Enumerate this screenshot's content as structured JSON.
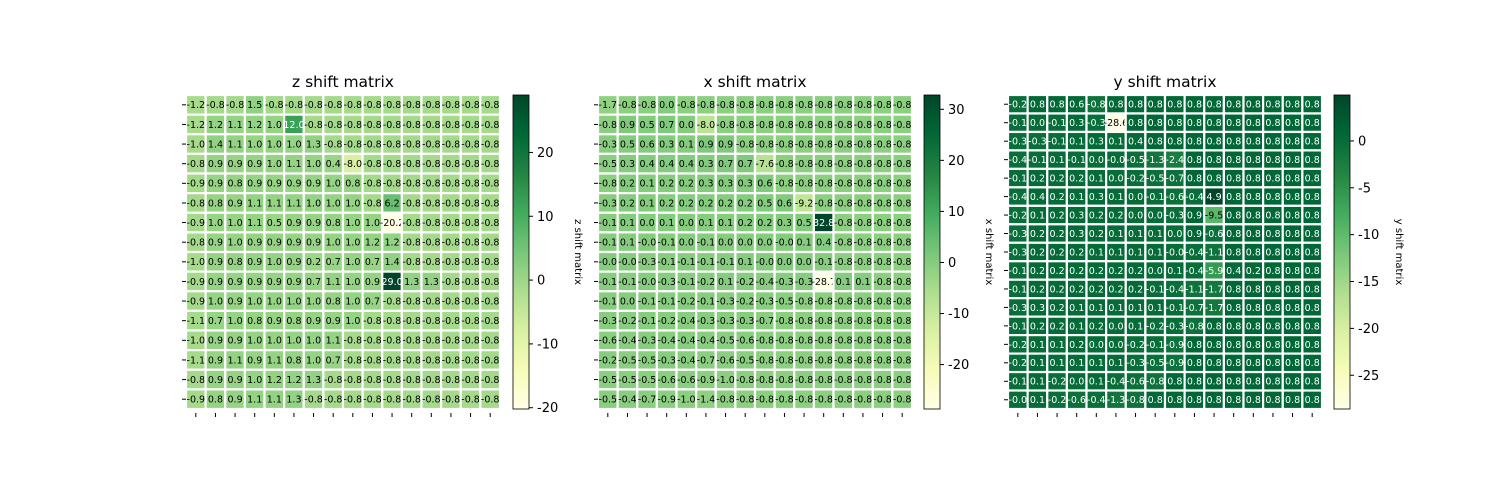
{
  "chart_data": [
    {
      "type": "heatmap",
      "title": "z shift matrix",
      "colorbar_label": "z shift matrix",
      "colorbar_ticks": [
        -20,
        -10,
        0,
        10,
        20
      ],
      "vmin": -20.2,
      "vmax": 29.0,
      "rows": [
        [
          "-1.2",
          "-0.8",
          "-0.8",
          "1.5",
          "-0.8",
          "-0.8",
          "-0.8",
          "-0.8",
          "-0.8",
          "-0.8",
          "-0.8",
          "-0.8",
          "-0.8",
          "-0.8",
          "-0.8",
          "-0.8"
        ],
        [
          "-1.2",
          "1.2",
          "1.1",
          "1.2",
          "1.0",
          "12.0",
          "-0.8",
          "-0.8",
          "-0.8",
          "-0.8",
          "-0.8",
          "-0.8",
          "-0.8",
          "-0.8",
          "-0.8",
          "-0.8"
        ],
        [
          "-1.0",
          "1.4",
          "1.1",
          "1.0",
          "1.0",
          "1.0",
          "1.3",
          "-0.8",
          "-0.8",
          "-0.8",
          "-0.8",
          "-0.8",
          "-0.8",
          "-0.8",
          "-0.8",
          "-0.8"
        ],
        [
          "-0.8",
          "0.9",
          "0.9",
          "0.9",
          "1.0",
          "1.1",
          "1.0",
          "0.4",
          "-8.0",
          "-0.8",
          "-0.8",
          "-0.8",
          "-0.8",
          "-0.8",
          "-0.8",
          "-0.8"
        ],
        [
          "-0.9",
          "0.9",
          "0.8",
          "0.9",
          "0.9",
          "0.9",
          "0.9",
          "1.0",
          "0.8",
          "-0.8",
          "-0.8",
          "-0.8",
          "-0.8",
          "-0.8",
          "-0.8",
          "-0.8"
        ],
        [
          "-0.8",
          "0.8",
          "0.9",
          "1.1",
          "1.1",
          "1.1",
          "1.0",
          "1.0",
          "1.0",
          "-0.8",
          "6.2",
          "-0.8",
          "-0.8",
          "-0.8",
          "-0.8",
          "-0.8"
        ],
        [
          "-0.9",
          "1.0",
          "1.0",
          "1.1",
          "0.5",
          "0.9",
          "0.9",
          "0.8",
          "1.0",
          "1.0",
          "-20.2",
          "-0.8",
          "-0.8",
          "-0.8",
          "-0.8",
          "-0.8"
        ],
        [
          "-0.8",
          "0.9",
          "1.0",
          "0.9",
          "0.9",
          "0.9",
          "0.9",
          "1.0",
          "1.0",
          "1.2",
          "1.2",
          "-0.8",
          "-0.8",
          "-0.8",
          "-0.8",
          "-0.8"
        ],
        [
          "-1.0",
          "0.9",
          "0.8",
          "0.9",
          "1.0",
          "0.9",
          "0.2",
          "0.7",
          "1.0",
          "0.7",
          "1.4",
          "-0.8",
          "-0.8",
          "-0.8",
          "-0.8",
          "-0.8"
        ],
        [
          "-0.9",
          "0.9",
          "0.9",
          "0.9",
          "0.9",
          "0.9",
          "0.7",
          "1.1",
          "1.0",
          "0.9",
          "29.0",
          "1.3",
          "1.3",
          "-0.8",
          "-0.8",
          "-0.8"
        ],
        [
          "-0.9",
          "1.0",
          "0.9",
          "1.0",
          "1.0",
          "1.0",
          "1.0",
          "0.8",
          "1.0",
          "0.7",
          "-0.8",
          "-0.8",
          "-0.8",
          "-0.8",
          "-0.8",
          "-0.8"
        ],
        [
          "-1.1",
          "0.7",
          "1.0",
          "0.8",
          "0.9",
          "0.8",
          "0.9",
          "0.9",
          "1.0",
          "-0.8",
          "-0.8",
          "-0.8",
          "-0.8",
          "-0.8",
          "-0.8",
          "-0.8"
        ],
        [
          "-1.0",
          "0.9",
          "0.9",
          "1.0",
          "1.0",
          "1.0",
          "1.0",
          "1.1",
          "-0.8",
          "-0.8",
          "-0.8",
          "-0.8",
          "-0.8",
          "-0.8",
          "-0.8",
          "-0.8"
        ],
        [
          "-1.1",
          "0.9",
          "1.1",
          "0.9",
          "1.1",
          "0.8",
          "1.0",
          "0.7",
          "-0.8",
          "-0.8",
          "-0.8",
          "-0.8",
          "-0.8",
          "-0.8",
          "-0.8",
          "-0.8"
        ],
        [
          "-0.8",
          "0.9",
          "0.9",
          "1.0",
          "1.2",
          "1.2",
          "1.3",
          "-0.8",
          "-0.8",
          "-0.8",
          "-0.8",
          "-0.8",
          "-0.8",
          "-0.8",
          "-0.8",
          "-0.8"
        ],
        [
          "-0.9",
          "0.8",
          "0.9",
          "1.1",
          "1.1",
          "1.3",
          "-0.8",
          "-0.8",
          "-0.8",
          "-0.8",
          "-0.8",
          "-0.8",
          "-0.8",
          "-0.8",
          "-0.8",
          "-0.8"
        ]
      ]
    },
    {
      "type": "heatmap",
      "title": "x shift matrix",
      "colorbar_label": "x shift matrix",
      "colorbar_ticks": [
        -20,
        -10,
        0,
        10,
        20,
        30
      ],
      "vmin": -28.7,
      "vmax": 32.8,
      "rows": [
        [
          "-1.7",
          "-0.8",
          "-0.8",
          "0.0",
          "-0.8",
          "-0.8",
          "-0.8",
          "-0.8",
          "-0.8",
          "-0.8",
          "-0.8",
          "-0.8",
          "-0.8",
          "-0.8",
          "-0.8",
          "-0.8"
        ],
        [
          "-0.8",
          "0.9",
          "0.5",
          "0.7",
          "0.0",
          "-8.0",
          "-0.8",
          "-0.8",
          "-0.8",
          "-0.8",
          "-0.8",
          "-0.8",
          "-0.8",
          "-0.8",
          "-0.8",
          "-0.8"
        ],
        [
          "-0.3",
          "0.5",
          "0.6",
          "0.3",
          "0.1",
          "0.9",
          "0.9",
          "-0.8",
          "-0.8",
          "-0.8",
          "-0.8",
          "-0.8",
          "-0.8",
          "-0.8",
          "-0.8",
          "-0.8"
        ],
        [
          "-0.5",
          "0.3",
          "0.4",
          "0.4",
          "0.4",
          "0.3",
          "0.7",
          "0.7",
          "-7.6",
          "-0.8",
          "-0.8",
          "-0.8",
          "-0.8",
          "-0.8",
          "-0.8",
          "-0.8"
        ],
        [
          "-0.8",
          "0.2",
          "0.1",
          "0.2",
          "0.2",
          "0.3",
          "0.3",
          "0.3",
          "0.6",
          "-0.8",
          "-0.8",
          "-0.8",
          "-0.8",
          "-0.8",
          "-0.8",
          "-0.8"
        ],
        [
          "-0.3",
          "0.2",
          "0.1",
          "0.2",
          "0.2",
          "0.2",
          "0.2",
          "0.2",
          "0.5",
          "0.6",
          "-9.2",
          "-0.8",
          "-0.8",
          "-0.8",
          "-0.8",
          "-0.8"
        ],
        [
          "-0.1",
          "0.1",
          "0.0",
          "0.1",
          "0.0",
          "0.1",
          "0.1",
          "0.2",
          "0.2",
          "0.3",
          "0.5",
          "32.8",
          "-0.8",
          "-0.8",
          "-0.8",
          "-0.8"
        ],
        [
          "-0.1",
          "0.1",
          "-0.0",
          "-0.1",
          "0.0",
          "-0.1",
          "0.0",
          "0.0",
          "0.0",
          "-0.0",
          "0.1",
          "0.4",
          "-0.8",
          "-0.8",
          "-0.8",
          "-0.8"
        ],
        [
          "-0.0",
          "-0.0",
          "-0.3",
          "-0.1",
          "-0.1",
          "-0.1",
          "-0.1",
          "0.1",
          "-0.0",
          "0.0",
          "0.0",
          "-0.1",
          "-0.8",
          "-0.8",
          "-0.8",
          "-0.8"
        ],
        [
          "-0.1",
          "-0.1",
          "-0.0",
          "-0.3",
          "-0.1",
          "-0.2",
          "0.1",
          "-0.2",
          "-0.4",
          "-0.3",
          "-0.3",
          "-28.7",
          "0.1",
          "0.1",
          "-0.8",
          "-0.8"
        ],
        [
          "-0.1",
          "0.0",
          "-0.1",
          "-0.1",
          "-0.2",
          "-0.1",
          "-0.3",
          "-0.2",
          "-0.3",
          "-0.5",
          "-0.8",
          "-0.8",
          "-0.8",
          "-0.8",
          "-0.8",
          "-0.8"
        ],
        [
          "-0.3",
          "-0.2",
          "-0.1",
          "-0.2",
          "-0.4",
          "-0.3",
          "-0.3",
          "-0.3",
          "-0.7",
          "-0.8",
          "-0.8",
          "-0.8",
          "-0.8",
          "-0.8",
          "-0.8",
          "-0.8"
        ],
        [
          "-0.6",
          "-0.4",
          "-0.3",
          "-0.4",
          "-0.4",
          "-0.4",
          "-0.5",
          "-0.6",
          "-0.8",
          "-0.8",
          "-0.8",
          "-0.8",
          "-0.8",
          "-0.8",
          "-0.8",
          "-0.8"
        ],
        [
          "-0.2",
          "-0.5",
          "-0.5",
          "-0.3",
          "-0.4",
          "-0.7",
          "-0.6",
          "-0.5",
          "-0.8",
          "-0.8",
          "-0.8",
          "-0.8",
          "-0.8",
          "-0.8",
          "-0.8",
          "-0.8"
        ],
        [
          "-0.5",
          "-0.5",
          "-0.5",
          "-0.6",
          "-0.6",
          "-0.9",
          "-1.0",
          "-0.8",
          "-0.8",
          "-0.8",
          "-0.8",
          "-0.8",
          "-0.8",
          "-0.8",
          "-0.8",
          "-0.8"
        ],
        [
          "-0.5",
          "-0.4",
          "-0.7",
          "-0.9",
          "-1.0",
          "-1.4",
          "-0.8",
          "-0.8",
          "-0.8",
          "-0.8",
          "-0.8",
          "-0.8",
          "-0.8",
          "-0.8",
          "-0.8",
          "-0.8"
        ]
      ]
    },
    {
      "type": "heatmap",
      "title": "y shift matrix",
      "colorbar_label": "y shift matrix",
      "colorbar_ticks": [
        -25,
        -20,
        -15,
        -10,
        -5,
        0
      ],
      "vmin": -28.6,
      "vmax": 4.9,
      "rows": [
        [
          "-0.2",
          "0.8",
          "0.8",
          "0.6",
          "-0.8",
          "0.8",
          "0.8",
          "0.8",
          "0.8",
          "0.8",
          "0.8",
          "0.8",
          "0.8",
          "0.8",
          "0.8",
          "0.8"
        ],
        [
          "-0.1",
          "0.0",
          "-0.1",
          "0.3",
          "-0.3",
          "-28.6",
          "0.8",
          "0.8",
          "0.8",
          "0.8",
          "0.8",
          "0.8",
          "0.8",
          "0.8",
          "0.8",
          "0.8"
        ],
        [
          "-0.3",
          "-0.3",
          "-0.1",
          "0.1",
          "0.3",
          "0.1",
          "0.4",
          "0.8",
          "0.8",
          "0.8",
          "0.8",
          "0.8",
          "0.8",
          "0.8",
          "0.8",
          "0.8"
        ],
        [
          "-0.4",
          "-0.1",
          "0.1",
          "-0.1",
          "0.0",
          "-0.0",
          "-0.5",
          "-1.3",
          "-2.4",
          "0.8",
          "0.8",
          "0.8",
          "0.8",
          "0.8",
          "0.8",
          "0.8"
        ],
        [
          "-0.1",
          "0.2",
          "0.2",
          "0.2",
          "0.1",
          "0.0",
          "-0.2",
          "-0.5",
          "-0.7",
          "0.8",
          "0.8",
          "0.8",
          "0.8",
          "0.8",
          "0.8",
          "0.8"
        ],
        [
          "-0.4",
          "0.4",
          "0.2",
          "0.1",
          "0.3",
          "0.1",
          "0.0",
          "-0.1",
          "-0.6",
          "-0.4",
          "4.9",
          "0.8",
          "0.8",
          "0.8",
          "0.8",
          "0.8"
        ],
        [
          "-0.2",
          "0.1",
          "0.2",
          "0.3",
          "0.2",
          "0.2",
          "0.0",
          "0.0",
          "-0.3",
          "0.9",
          "-9.5",
          "0.8",
          "0.8",
          "0.8",
          "0.8",
          "0.8"
        ],
        [
          "-0.3",
          "0.2",
          "0.2",
          "0.3",
          "0.2",
          "0.1",
          "0.1",
          "0.1",
          "0.0",
          "0.9",
          "-0.6",
          "0.8",
          "0.8",
          "0.8",
          "0.8",
          "0.8"
        ],
        [
          "-0.3",
          "0.2",
          "0.2",
          "0.2",
          "0.1",
          "0.1",
          "0.1",
          "0.1",
          "-0.0",
          "-0.4",
          "-1.1",
          "0.8",
          "0.8",
          "0.8",
          "0.8",
          "0.8"
        ],
        [
          "-0.1",
          "0.2",
          "0.2",
          "0.2",
          "0.2",
          "0.2",
          "0.2",
          "0.0",
          "0.1",
          "-0.4",
          "-5.9",
          "0.4",
          "0.2",
          "0.8",
          "0.8",
          "0.8"
        ],
        [
          "-0.1",
          "0.2",
          "0.2",
          "0.2",
          "0.2",
          "0.2",
          "0.2",
          "-0.1",
          "-0.4",
          "-1.1",
          "-1.7",
          "0.8",
          "0.8",
          "0.8",
          "0.8",
          "0.8"
        ],
        [
          "-0.3",
          "0.3",
          "0.2",
          "0.1",
          "0.1",
          "0.1",
          "0.1",
          "0.1",
          "-0.1",
          "-0.7",
          "-1.7",
          "0.8",
          "0.8",
          "0.8",
          "0.8",
          "0.8"
        ],
        [
          "-0.1",
          "0.2",
          "0.2",
          "0.1",
          "0.2",
          "0.0",
          "0.1",
          "-0.2",
          "-0.3",
          "-0.8",
          "0.8",
          "0.8",
          "0.8",
          "0.8",
          "0.8",
          "0.8"
        ],
        [
          "-0.2",
          "0.1",
          "0.1",
          "0.2",
          "0.0",
          "0.0",
          "-0.2",
          "-0.1",
          "-0.9",
          "0.8",
          "0.8",
          "0.8",
          "0.8",
          "0.8",
          "0.8",
          "0.8"
        ],
        [
          "-0.2",
          "0.1",
          "0.1",
          "0.1",
          "0.1",
          "0.1",
          "-0.3",
          "-0.5",
          "-0.9",
          "0.8",
          "0.8",
          "0.8",
          "0.8",
          "0.8",
          "0.8",
          "0.8"
        ],
        [
          "-0.1",
          "0.1",
          "-0.2",
          "0.0",
          "0.1",
          "-0.4",
          "-0.6",
          "-0.8",
          "0.8",
          "0.8",
          "0.8",
          "0.8",
          "0.8",
          "0.8",
          "0.8",
          "0.8"
        ],
        [
          "-0.0",
          "0.1",
          "-0.2",
          "-0.6",
          "-0.4",
          "-1.3",
          "-0.8",
          "0.8",
          "0.8",
          "0.8",
          "0.8",
          "0.8",
          "0.8",
          "0.8",
          "0.8",
          "0.8"
        ]
      ]
    }
  ]
}
